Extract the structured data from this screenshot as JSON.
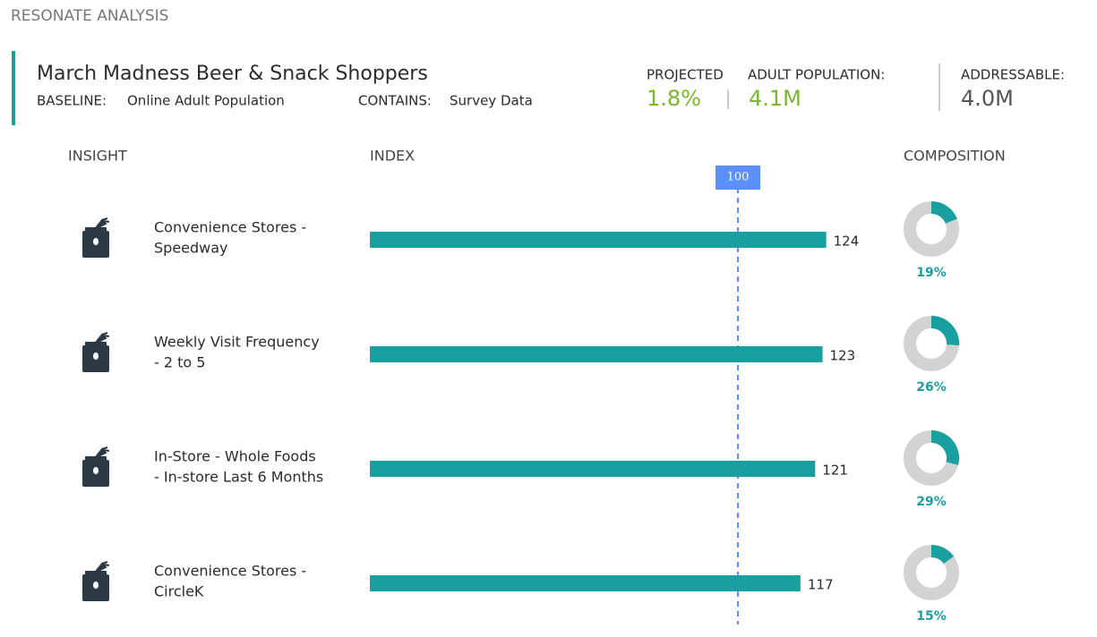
{
  "app_title": "RESONATE ANALYSIS",
  "header": {
    "title": "March Madness Beer & Snack Shoppers",
    "baseline_label": "BASELINE:",
    "baseline_value": "Online Adult Population",
    "contains_label": "CONTAINS:",
    "contains_value": "Survey Data",
    "projected_label": "PROJECTED",
    "population_label": "ADULT POPULATION:",
    "projected_value": "1.8%",
    "population_value": "4.1M",
    "addressable_label": "ADDRESSABLE:",
    "addressable_value": "4.0M"
  },
  "columns": {
    "insight": "INSIGHT",
    "index": "INDEX",
    "composition": "COMPOSITION"
  },
  "chart_data": {
    "type": "bar",
    "categories": [
      [
        "Convenience Stores -",
        "Speedway"
      ],
      [
        "Weekly Visit Frequency",
        "- 2 to 5"
      ],
      [
        "In-Store - Whole Foods",
        "- In-store Last 6 Months"
      ],
      [
        "Convenience Stores -",
        "CircleK"
      ]
    ],
    "values": [
      124,
      123,
      121,
      117
    ],
    "color": "#1a9fa0",
    "reference": 100,
    "reference_color": "#5b8ff9",
    "composition": {
      "values": [
        19,
        26,
        29,
        15
      ],
      "value_labels": [
        "19%",
        "26%",
        "29%",
        "15%"
      ],
      "color": "#1a9fa0",
      "track_color": "#d3d3d3"
    }
  }
}
